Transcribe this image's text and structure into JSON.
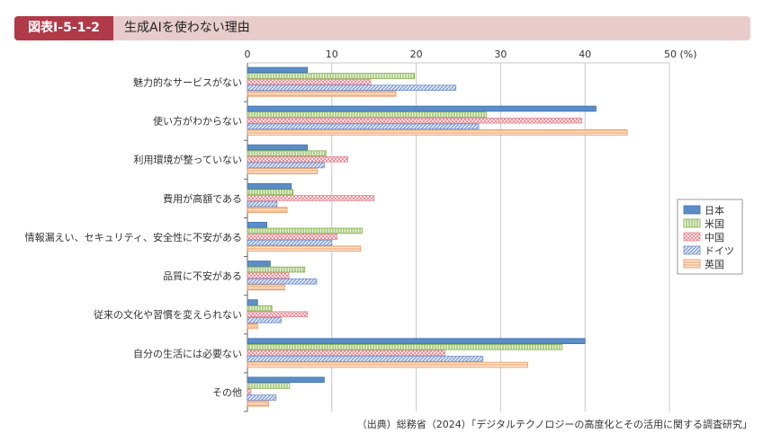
{
  "header": {
    "tag": "図表Ⅰ-5-1-2",
    "title": "生成AIを使わない理由"
  },
  "source": "（出典）総務省（2024）「デジタルテクノロジーの高度化とその活用に関する調査研究」",
  "chart_data": {
    "type": "bar",
    "orientation": "horizontal",
    "xlim": [
      0,
      50
    ],
    "ticks": [
      0,
      10,
      20,
      30,
      40,
      50
    ],
    "tick_labels": [
      "0",
      "10",
      "20",
      "30",
      "40",
      "50 (%)"
    ],
    "legend_position": "right",
    "categories": [
      "魅力的なサービスがない",
      "使い方がわからない",
      "利用環境が整っていない",
      "費用が高額である",
      "情報漏えい、セキュリティ、安全性に不安がある",
      "品質に不安がある",
      "従来の文化や習慣を変えられない",
      "自分の生活には必要ない",
      "その他"
    ],
    "series": [
      {
        "name": "日本",
        "color": "#5b8ec9",
        "pattern": "solid",
        "values": [
          7.1,
          41.3,
          7.1,
          5.2,
          2.3,
          2.7,
          1.2,
          40.0,
          9.1
        ]
      },
      {
        "name": "米国",
        "color": "#9ac461",
        "pattern": "vertical-lines",
        "values": [
          19.8,
          28.3,
          9.3,
          5.4,
          13.6,
          6.8,
          2.9,
          37.3,
          5.0
        ]
      },
      {
        "name": "中国",
        "color": "#f0a4ac",
        "pattern": "dots",
        "values": [
          14.6,
          39.6,
          11.9,
          15.0,
          10.6,
          4.9,
          7.1,
          23.4,
          0.4
        ]
      },
      {
        "name": "ドイツ",
        "color": "#8ea6d8",
        "pattern": "diagonal",
        "values": [
          24.7,
          27.4,
          9.1,
          3.5,
          10.0,
          8.2,
          4.0,
          27.9,
          3.4
        ]
      },
      {
        "name": "英国",
        "color": "#f2b487",
        "pattern": "horizontal-lines",
        "values": [
          17.6,
          45.0,
          8.3,
          4.7,
          13.4,
          4.4,
          1.2,
          33.2,
          2.5
        ]
      }
    ]
  }
}
